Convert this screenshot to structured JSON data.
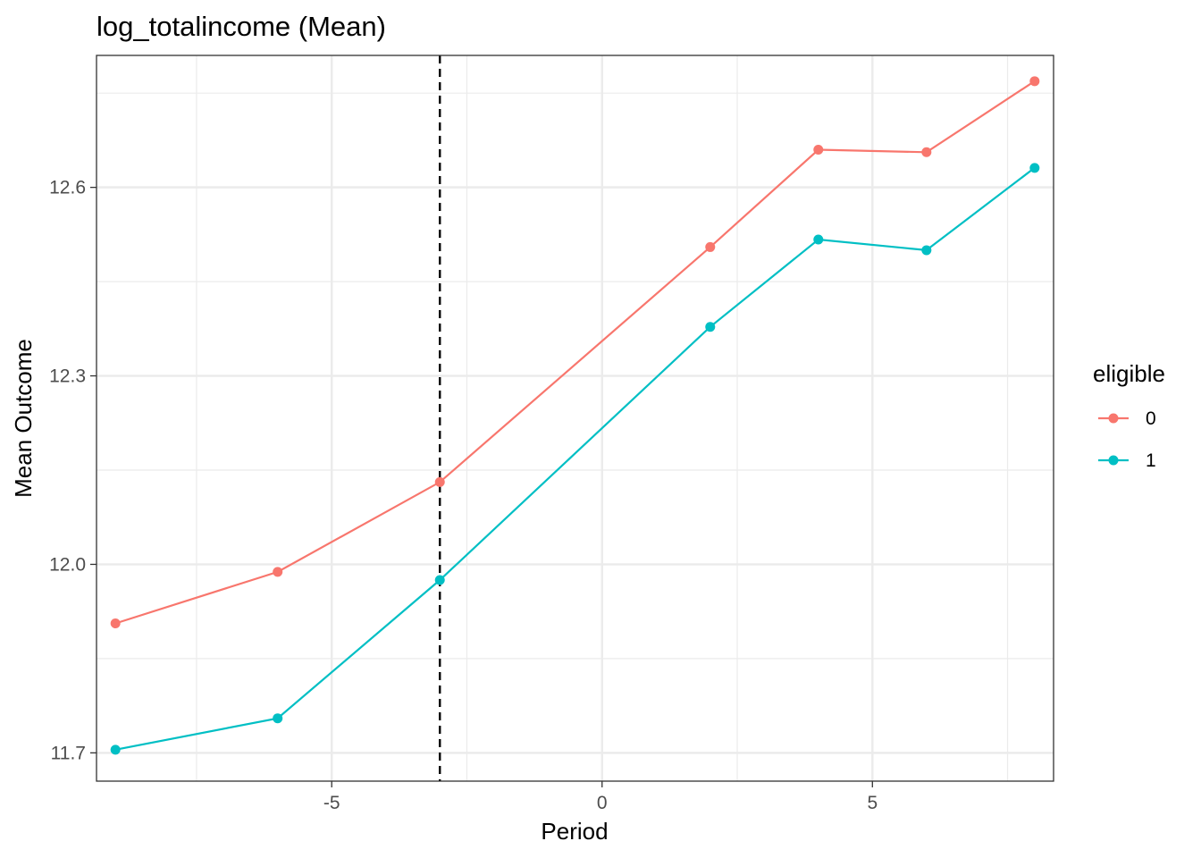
{
  "chart_data": {
    "type": "line",
    "title": "log_totalincome (Mean)",
    "xlabel": "Period",
    "ylabel": "Mean Outcome",
    "xlim": [
      -9.35,
      8.35
    ],
    "ylim": [
      11.655,
      12.81
    ],
    "x_ticks": [
      -5,
      0,
      5
    ],
    "x_tick_labels": [
      "-5",
      "0",
      "5"
    ],
    "y_ticks": [
      11.7,
      12.0,
      12.3,
      12.6
    ],
    "y_tick_labels": [
      "11.7",
      "12.0",
      "12.3",
      "12.6"
    ],
    "grid": true,
    "vline": {
      "x": -3,
      "style": "dashed",
      "color": "#000000"
    },
    "legend": {
      "title": "eligible",
      "position": "right"
    },
    "x": [
      -9,
      -6,
      -3,
      2,
      4,
      6,
      8
    ],
    "series": [
      {
        "name": "0",
        "color": "#F8766D",
        "values": [
          11.906,
          11.988,
          12.131,
          12.505,
          12.66,
          12.656,
          12.769
        ]
      },
      {
        "name": "1",
        "color": "#00BFC4",
        "values": [
          11.705,
          11.755,
          11.975,
          12.378,
          12.517,
          12.5,
          12.631
        ]
      }
    ]
  }
}
